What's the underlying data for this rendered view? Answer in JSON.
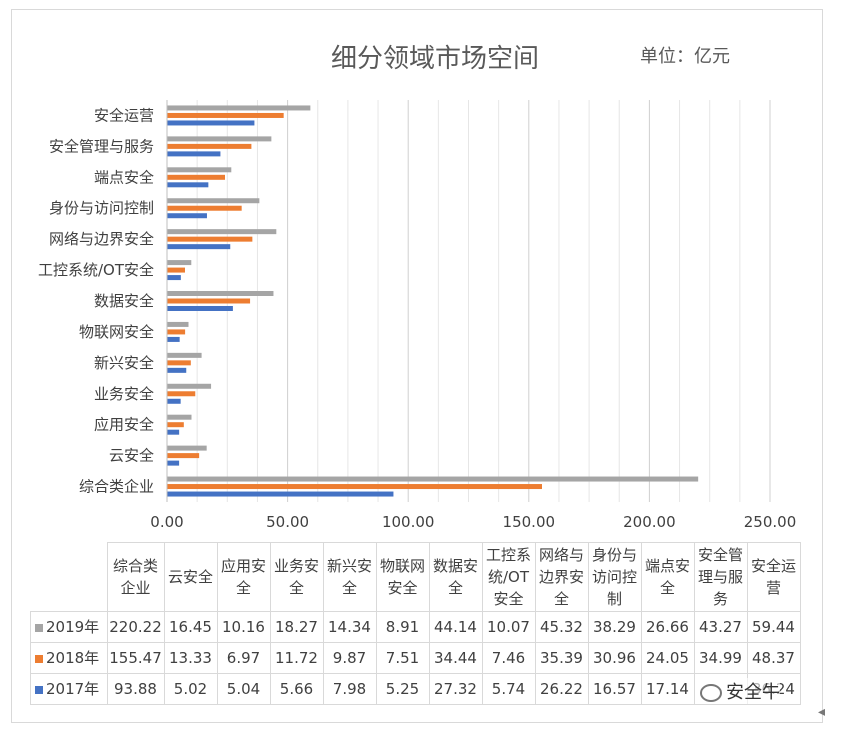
{
  "chart_data": {
    "type": "bar",
    "orientation": "horizontal",
    "title": "细分领域市场空间",
    "unit_label": "单位：亿元",
    "categories": [
      "综合类企业",
      "云安全",
      "应用安全",
      "业务安全",
      "新兴安全",
      "物联网安全",
      "数据安全",
      "工控系统/OT安全",
      "网络与边界安全",
      "身份与访问控制",
      "端点安全",
      "安全管理与服务",
      "安全运营"
    ],
    "table_headers": [
      "综合类企业",
      "云安全",
      "应用安全",
      "业务安全",
      "新兴安全",
      "物联网安全",
      "数据安全",
      "工控系统/OT安全",
      "网络与边界安全",
      "身份与访问控制",
      "端点安全",
      "安全管理与服务",
      "安全运营"
    ],
    "series": [
      {
        "name": "2019年",
        "color": "#a5a5a5",
        "values": [
          220.22,
          16.45,
          10.16,
          18.27,
          14.34,
          8.91,
          44.14,
          10.07,
          45.32,
          38.29,
          26.66,
          43.27,
          59.44
        ],
        "value_labels": [
          "220.22",
          "16.45",
          "10.16",
          "18.27",
          "14.34",
          "8.91",
          "44.14",
          "10.07",
          "45.32",
          "38.29",
          "26.66",
          "43.27",
          "59.44"
        ]
      },
      {
        "name": "2018年",
        "color": "#ed7d31",
        "values": [
          155.47,
          13.33,
          6.97,
          11.72,
          9.87,
          7.51,
          34.44,
          7.46,
          35.39,
          30.96,
          24.05,
          34.99,
          48.37
        ],
        "value_labels": [
          "155.47",
          "13.33",
          "6.97",
          "11.72",
          "9.87",
          "7.51",
          "34.44",
          "7.46",
          "35.39",
          "30.96",
          "24.05",
          "34.99",
          "48.37"
        ]
      },
      {
        "name": "2017年",
        "color": "#4472c4",
        "values": [
          93.88,
          5.02,
          5.04,
          5.66,
          7.98,
          5.25,
          27.32,
          5.74,
          26.22,
          16.57,
          17.14,
          22.15,
          36.24
        ],
        "value_labels": [
          "93.88",
          "5.02",
          "5.04",
          "5.66",
          "7.98",
          "5.25",
          "27.32",
          "5.74",
          "26.22",
          "16.57",
          "17.14",
          "",
          "36.24"
        ]
      }
    ],
    "xlim": [
      0,
      250
    ],
    "xticks": [
      "0.00",
      "50.00",
      "100.00",
      "150.00",
      "200.00",
      "250.00"
    ],
    "grid": true,
    "legend": "table"
  },
  "watermark": {
    "text": "安全牛",
    "icon": "wechat-icon"
  }
}
